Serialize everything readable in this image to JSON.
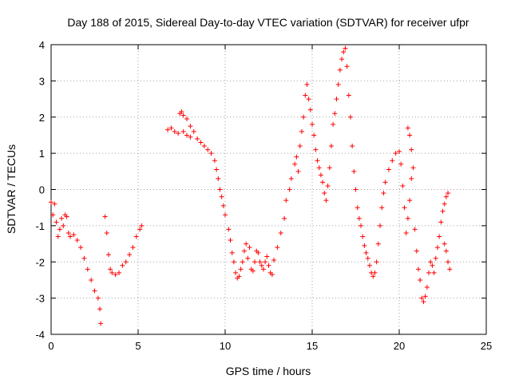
{
  "chart_data": {
    "type": "scatter",
    "title": "Day 188 of 2015, Sidereal Day-to-day VTEC variation (SDTVAR) for receiver ufpr",
    "xlabel": "GPS time / hours",
    "ylabel": "SDTVAR / TECUs",
    "xlim": [
      0,
      25
    ],
    "ylim": [
      -4,
      4
    ],
    "xticks": [
      "0",
      "5",
      "10",
      "15",
      "20",
      "25"
    ],
    "yticks": [
      "-4",
      "-3",
      "-2",
      "-1",
      "0",
      "1",
      "2",
      "3",
      "4"
    ],
    "grid": true,
    "marker": "plus",
    "color": "#ff0000",
    "series": [
      {
        "name": "SDTVAR",
        "points": [
          [
            0.0,
            -0.35
          ],
          [
            0.1,
            -0.7
          ],
          [
            0.2,
            -0.4
          ],
          [
            0.3,
            -0.9
          ],
          [
            0.4,
            -1.3
          ],
          [
            0.5,
            -1.1
          ],
          [
            0.6,
            -0.8
          ],
          [
            0.7,
            -1.0
          ],
          [
            0.8,
            -0.7
          ],
          [
            0.9,
            -0.75
          ],
          [
            1.0,
            -1.2
          ],
          [
            1.1,
            -1.3
          ],
          [
            1.3,
            -1.25
          ],
          [
            1.5,
            -1.4
          ],
          [
            1.7,
            -1.6
          ],
          [
            1.9,
            -1.9
          ],
          [
            2.1,
            -2.2
          ],
          [
            2.3,
            -2.5
          ],
          [
            2.5,
            -2.8
          ],
          [
            2.7,
            -3.0
          ],
          [
            2.8,
            -3.3
          ],
          [
            2.85,
            -3.7
          ],
          [
            3.1,
            -0.75
          ],
          [
            3.2,
            -1.2
          ],
          [
            3.3,
            -1.8
          ],
          [
            3.4,
            -2.2
          ],
          [
            3.5,
            -2.3
          ],
          [
            3.7,
            -2.35
          ],
          [
            3.9,
            -2.3
          ],
          [
            4.1,
            -2.1
          ],
          [
            4.3,
            -2.0
          ],
          [
            4.5,
            -1.8
          ],
          [
            4.7,
            -1.6
          ],
          [
            4.9,
            -1.3
          ],
          [
            5.1,
            -1.1
          ],
          [
            5.2,
            -1.0
          ],
          [
            6.7,
            1.65
          ],
          [
            6.9,
            1.7
          ],
          [
            7.1,
            1.6
          ],
          [
            7.3,
            1.55
          ],
          [
            7.4,
            2.1
          ],
          [
            7.5,
            2.15
          ],
          [
            7.6,
            2.05
          ],
          [
            7.8,
            1.95
          ],
          [
            8.0,
            1.75
          ],
          [
            8.2,
            1.6
          ],
          [
            7.6,
            1.6
          ],
          [
            7.8,
            1.5
          ],
          [
            8.0,
            1.45
          ],
          [
            8.4,
            1.4
          ],
          [
            8.6,
            1.3
          ],
          [
            8.8,
            1.2
          ],
          [
            9.0,
            1.1
          ],
          [
            9.2,
            1.0
          ],
          [
            9.4,
            0.8
          ],
          [
            9.5,
            0.55
          ],
          [
            9.6,
            0.3
          ],
          [
            9.7,
            0.0
          ],
          [
            9.8,
            -0.2
          ],
          [
            9.9,
            -0.45
          ],
          [
            10.0,
            -0.7
          ],
          [
            10.2,
            -1.1
          ],
          [
            10.3,
            -1.4
          ],
          [
            10.4,
            -1.75
          ],
          [
            10.5,
            -2.0
          ],
          [
            10.6,
            -2.3
          ],
          [
            10.7,
            -2.45
          ],
          [
            10.8,
            -2.4
          ],
          [
            10.9,
            -2.2
          ],
          [
            11.0,
            -2.0
          ],
          [
            11.1,
            -1.7
          ],
          [
            11.2,
            -1.5
          ],
          [
            11.3,
            -1.9
          ],
          [
            11.4,
            -1.6
          ],
          [
            11.5,
            -2.2
          ],
          [
            11.6,
            -2.25
          ],
          [
            11.7,
            -2.0
          ],
          [
            11.8,
            -1.7
          ],
          [
            11.9,
            -1.75
          ],
          [
            12.0,
            -2.0
          ],
          [
            12.1,
            -2.1
          ],
          [
            12.2,
            -2.2
          ],
          [
            12.3,
            -2.0
          ],
          [
            12.4,
            -1.85
          ],
          [
            12.5,
            -2.1
          ],
          [
            12.6,
            -2.3
          ],
          [
            12.7,
            -2.35
          ],
          [
            12.8,
            -1.95
          ],
          [
            13.0,
            -1.6
          ],
          [
            13.2,
            -1.2
          ],
          [
            13.4,
            -0.8
          ],
          [
            13.5,
            -0.3
          ],
          [
            13.7,
            0.0
          ],
          [
            13.8,
            0.3
          ],
          [
            14.0,
            0.7
          ],
          [
            14.1,
            0.9
          ],
          [
            14.2,
            0.5
          ],
          [
            14.3,
            1.2
          ],
          [
            14.4,
            1.6
          ],
          [
            14.5,
            2.0
          ],
          [
            14.6,
            2.6
          ],
          [
            14.7,
            2.9
          ],
          [
            14.8,
            2.5
          ],
          [
            14.9,
            2.2
          ],
          [
            15.0,
            1.8
          ],
          [
            15.1,
            1.5
          ],
          [
            15.2,
            1.1
          ],
          [
            15.3,
            0.8
          ],
          [
            15.4,
            0.6
          ],
          [
            15.5,
            0.4
          ],
          [
            15.6,
            0.2
          ],
          [
            15.7,
            -0.1
          ],
          [
            15.8,
            -0.3
          ],
          [
            15.9,
            0.1
          ],
          [
            16.0,
            0.6
          ],
          [
            16.1,
            1.2
          ],
          [
            16.2,
            1.8
          ],
          [
            16.3,
            2.1
          ],
          [
            16.4,
            2.5
          ],
          [
            16.5,
            2.9
          ],
          [
            16.6,
            3.3
          ],
          [
            16.7,
            3.6
          ],
          [
            16.8,
            3.8
          ],
          [
            16.9,
            3.9
          ],
          [
            17.0,
            3.4
          ],
          [
            17.1,
            2.6
          ],
          [
            17.2,
            2.0
          ],
          [
            17.3,
            1.2
          ],
          [
            17.4,
            0.5
          ],
          [
            17.5,
            0.0
          ],
          [
            17.6,
            -0.5
          ],
          [
            17.7,
            -0.8
          ],
          [
            17.8,
            -1.0
          ],
          [
            17.9,
            -1.3
          ],
          [
            18.0,
            -1.55
          ],
          [
            18.1,
            -1.75
          ],
          [
            18.2,
            -1.9
          ],
          [
            18.3,
            -2.1
          ],
          [
            18.4,
            -2.3
          ],
          [
            18.5,
            -2.4
          ],
          [
            18.6,
            -2.3
          ],
          [
            18.7,
            -2.0
          ],
          [
            18.8,
            -1.5
          ],
          [
            18.9,
            -1.0
          ],
          [
            19.0,
            -0.5
          ],
          [
            19.1,
            -0.1
          ],
          [
            19.2,
            0.2
          ],
          [
            19.4,
            0.55
          ],
          [
            19.6,
            0.8
          ],
          [
            19.8,
            1.0
          ],
          [
            20.0,
            1.05
          ],
          [
            20.1,
            0.7
          ],
          [
            20.2,
            0.1
          ],
          [
            20.3,
            -0.5
          ],
          [
            20.4,
            -1.2
          ],
          [
            20.5,
            -0.8
          ],
          [
            20.6,
            -0.3
          ],
          [
            20.7,
            0.3
          ],
          [
            20.8,
            0.6
          ],
          [
            20.5,
            1.7
          ],
          [
            20.6,
            1.5
          ],
          [
            20.7,
            1.1
          ],
          [
            20.9,
            -1.1
          ],
          [
            21.0,
            -1.7
          ],
          [
            21.1,
            -2.2
          ],
          [
            21.2,
            -2.5
          ],
          [
            21.3,
            -3.0
          ],
          [
            21.4,
            -3.1
          ],
          [
            21.5,
            -2.95
          ],
          [
            21.6,
            -2.7
          ],
          [
            21.7,
            -2.3
          ],
          [
            21.8,
            -2.0
          ],
          [
            21.9,
            -2.1
          ],
          [
            22.0,
            -2.3
          ],
          [
            22.1,
            -1.9
          ],
          [
            22.2,
            -1.6
          ],
          [
            22.3,
            -1.3
          ],
          [
            22.4,
            -0.9
          ],
          [
            22.5,
            -0.6
          ],
          [
            22.6,
            -0.4
          ],
          [
            22.7,
            -0.2
          ],
          [
            22.8,
            -0.1
          ],
          [
            22.6,
            -1.5
          ],
          [
            22.7,
            -1.7
          ],
          [
            22.8,
            -2.0
          ],
          [
            22.9,
            -2.2
          ]
        ]
      }
    ]
  }
}
